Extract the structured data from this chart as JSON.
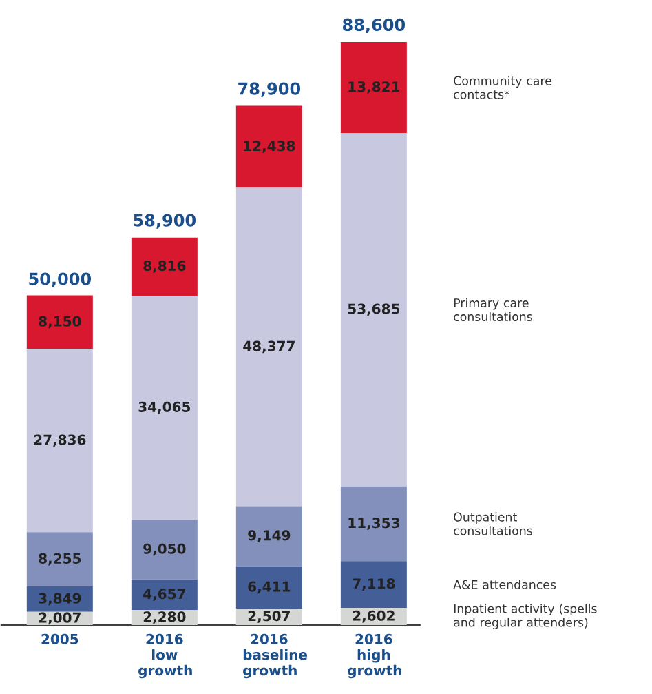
{
  "chart_data": {
    "type": "bar",
    "stacked": true,
    "categories": [
      "2005",
      "2016 low growth",
      "2016 baseline growth",
      "2016 high growth"
    ],
    "series": [
      {
        "name": "Inpatient activity (spells and regular attenders)",
        "color": "#d4d7d4",
        "values": [
          2007,
          2280,
          2507,
          2602
        ],
        "value_labels": [
          "2,007",
          "2,280",
          "2,507",
          "2,602"
        ]
      },
      {
        "name": "A&E attendances",
        "color": "#445f97",
        "values": [
          3849,
          4657,
          6411,
          7118
        ],
        "value_labels": [
          "3,849",
          "4,657",
          "6,411",
          "7,118"
        ]
      },
      {
        "name": "Outpatient consultations",
        "color": "#8390bc",
        "values": [
          8255,
          9050,
          9149,
          11353
        ],
        "value_labels": [
          "8,255",
          "9,050",
          "9,149",
          "11,353"
        ]
      },
      {
        "name": "Primary care consultations",
        "color": "#c8c9e1",
        "values": [
          27836,
          34065,
          48377,
          53685
        ],
        "value_labels": [
          "27,836",
          "34,065",
          "48,377",
          "53,685"
        ]
      },
      {
        "name": "Community care contacts*",
        "color": "#d7182f",
        "values": [
          8150,
          8816,
          12438,
          13821
        ],
        "value_labels": [
          "8,150",
          "8,816",
          "12,438",
          "13,821"
        ]
      }
    ],
    "annotations": [
      {
        "text": "50,000",
        "x": "2005",
        "y": 50000
      },
      {
        "text": "58,900",
        "x": "2016 low growth",
        "y": 58900
      },
      {
        "text": "78,900",
        "x": "2016 baseline growth",
        "y": 78900
      },
      {
        "text": "88,600",
        "x": "2016 high growth",
        "y": 88600
      }
    ]
  }
}
